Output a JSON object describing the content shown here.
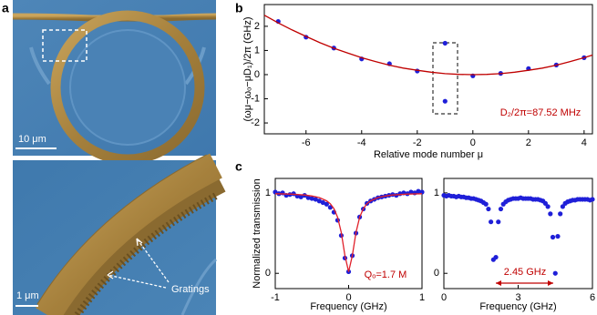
{
  "figure": {
    "panel_labels": [
      "a",
      "b",
      "c"
    ],
    "images": [
      {
        "scale_bar": "10 μm"
      },
      {
        "scale_bar": "1 μm",
        "annotation": "Gratings"
      }
    ]
  },
  "chart_data": [
    {
      "type": "scatter",
      "xlabel": "Relative mode number μ",
      "ylabel": "(ωμ−ωₒ−μD₁)/2π (GHz)",
      "annotation": "D₂/2π=87.52 MHz",
      "xlim": [
        -7.5,
        4.3
      ],
      "xticks": [
        -6,
        -4,
        -2,
        0,
        2,
        4
      ],
      "ylim": [
        -2.45,
        2.9
      ],
      "yticks": [
        -2,
        -1,
        0,
        1,
        2
      ],
      "series": [
        {
          "style": "markers",
          "color": "#1f1fd8",
          "x": [
            -7,
            -6,
            -5,
            -4,
            -3,
            -2,
            -1,
            -1,
            0,
            1,
            2,
            3,
            4
          ],
          "values": [
            2.2,
            1.55,
            1.1,
            0.65,
            0.45,
            0.15,
            1.3,
            -1.1,
            -0.05,
            0.05,
            0.25,
            0.4,
            0.7
          ]
        },
        {
          "style": "line",
          "color": "#c00000",
          "x": [
            -7.5,
            -7,
            -6.5,
            -6,
            -5.5,
            -5,
            -4.5,
            -4,
            -3.5,
            -3,
            -2.5,
            -2,
            -1.5,
            -1,
            -0.5,
            0,
            0.5,
            1,
            1.5,
            2,
            2.5,
            3,
            3.5,
            4,
            4.3
          ],
          "values": [
            2.46,
            2.14,
            1.85,
            1.58,
            1.32,
            1.09,
            0.89,
            0.7,
            0.54,
            0.39,
            0.27,
            0.18,
            0.1,
            0.04,
            0.01,
            0,
            0.01,
            0.04,
            0.1,
            0.18,
            0.27,
            0.39,
            0.54,
            0.7,
            0.81
          ]
        }
      ]
    },
    {
      "type": "scatter",
      "xlabel": "Frequency (GHz)",
      "ylabel": "Normalized transmission",
      "annotation": "Qₒ=1.7 M",
      "xlim": [
        -1,
        1
      ],
      "xticks": [
        -1,
        0,
        1
      ],
      "ylim": [
        -0.19,
        1.18
      ],
      "yticks": [
        0,
        1
      ],
      "series": [
        {
          "style": "markers",
          "color": "#1f1fd8",
          "x": [
            -1,
            -0.95,
            -0.9,
            -0.85,
            -0.8,
            -0.75,
            -0.7,
            -0.65,
            -0.6,
            -0.55,
            -0.5,
            -0.45,
            -0.4,
            -0.35,
            -0.3,
            -0.25,
            -0.2,
            -0.15,
            -0.1,
            -0.05,
            0,
            0.05,
            0.1,
            0.15,
            0.2,
            0.25,
            0.3,
            0.35,
            0.4,
            0.45,
            0.5,
            0.55,
            0.6,
            0.65,
            0.7,
            0.75,
            0.8,
            0.85,
            0.9,
            0.95,
            1
          ],
          "values": [
            1.01,
            0.99,
            1.0,
            0.97,
            0.98,
            0.99,
            0.96,
            0.95,
            0.97,
            0.94,
            0.93,
            0.92,
            0.9,
            0.88,
            0.86,
            0.82,
            0.76,
            0.66,
            0.47,
            0.19,
            0.02,
            0.22,
            0.5,
            0.7,
            0.8,
            0.87,
            0.9,
            0.92,
            0.94,
            0.95,
            0.96,
            0.97,
            0.98,
            0.97,
            0.99,
            1.0,
            0.99,
            1.01,
            1.0,
            1.02,
            1.01
          ]
        },
        {
          "style": "line",
          "color": "#e0202a",
          "x": [
            -1,
            -0.8,
            -0.6,
            -0.5,
            -0.4,
            -0.3,
            -0.25,
            -0.2,
            -0.15,
            -0.1,
            -0.05,
            0,
            0.05,
            0.1,
            0.15,
            0.2,
            0.25,
            0.3,
            0.4,
            0.5,
            0.6,
            0.8,
            1
          ],
          "values": [
            0.99,
            0.985,
            0.974,
            0.962,
            0.942,
            0.902,
            0.865,
            0.804,
            0.698,
            0.51,
            0.216,
            0.02,
            0.216,
            0.51,
            0.698,
            0.804,
            0.865,
            0.902,
            0.942,
            0.962,
            0.974,
            0.985,
            0.99
          ]
        }
      ]
    },
    {
      "type": "scatter",
      "xlabel": "Frequency (GHz)",
      "annotation": "2.45 GHz",
      "xlim": [
        0,
        6
      ],
      "xticks": [
        0,
        3,
        6
      ],
      "ylim": [
        -0.19,
        1.18
      ],
      "yticks": [
        0,
        1
      ],
      "series": [
        {
          "style": "markers",
          "color": "#1f1fd8",
          "x": [
            0,
            0.1,
            0.2,
            0.3,
            0.4,
            0.5,
            0.6,
            0.7,
            0.8,
            0.9,
            1.0,
            1.1,
            1.2,
            1.3,
            1.4,
            1.5,
            1.6,
            1.7,
            1.8,
            1.9,
            2.0,
            2.1,
            2.2,
            2.3,
            2.4,
            2.5,
            2.6,
            2.7,
            2.8,
            2.9,
            3.0,
            3.1,
            3.2,
            3.3,
            3.4,
            3.5,
            3.6,
            3.7,
            3.8,
            3.9,
            4.0,
            4.1,
            4.2,
            4.3,
            4.4,
            4.5,
            4.6,
            4.7,
            4.8,
            4.9,
            5.0,
            5.1,
            5.2,
            5.3,
            5.4,
            5.5,
            5.6,
            5.7,
            5.8,
            5.9,
            6.0
          ],
          "values": [
            0.97,
            0.96,
            0.97,
            0.96,
            0.96,
            0.95,
            0.96,
            0.95,
            0.95,
            0.94,
            0.94,
            0.93,
            0.93,
            0.92,
            0.91,
            0.9,
            0.88,
            0.86,
            0.8,
            0.64,
            0.17,
            0.2,
            0.64,
            0.8,
            0.86,
            0.89,
            0.91,
            0.92,
            0.93,
            0.93,
            0.93,
            0.94,
            0.93,
            0.93,
            0.93,
            0.93,
            0.92,
            0.92,
            0.92,
            0.91,
            0.9,
            0.87,
            0.83,
            0.74,
            0.45,
            0.0,
            0.46,
            0.74,
            0.83,
            0.87,
            0.89,
            0.9,
            0.91,
            0.91,
            0.92,
            0.92,
            0.92,
            0.92,
            0.92,
            0.91,
            0.92
          ]
        }
      ]
    }
  ]
}
